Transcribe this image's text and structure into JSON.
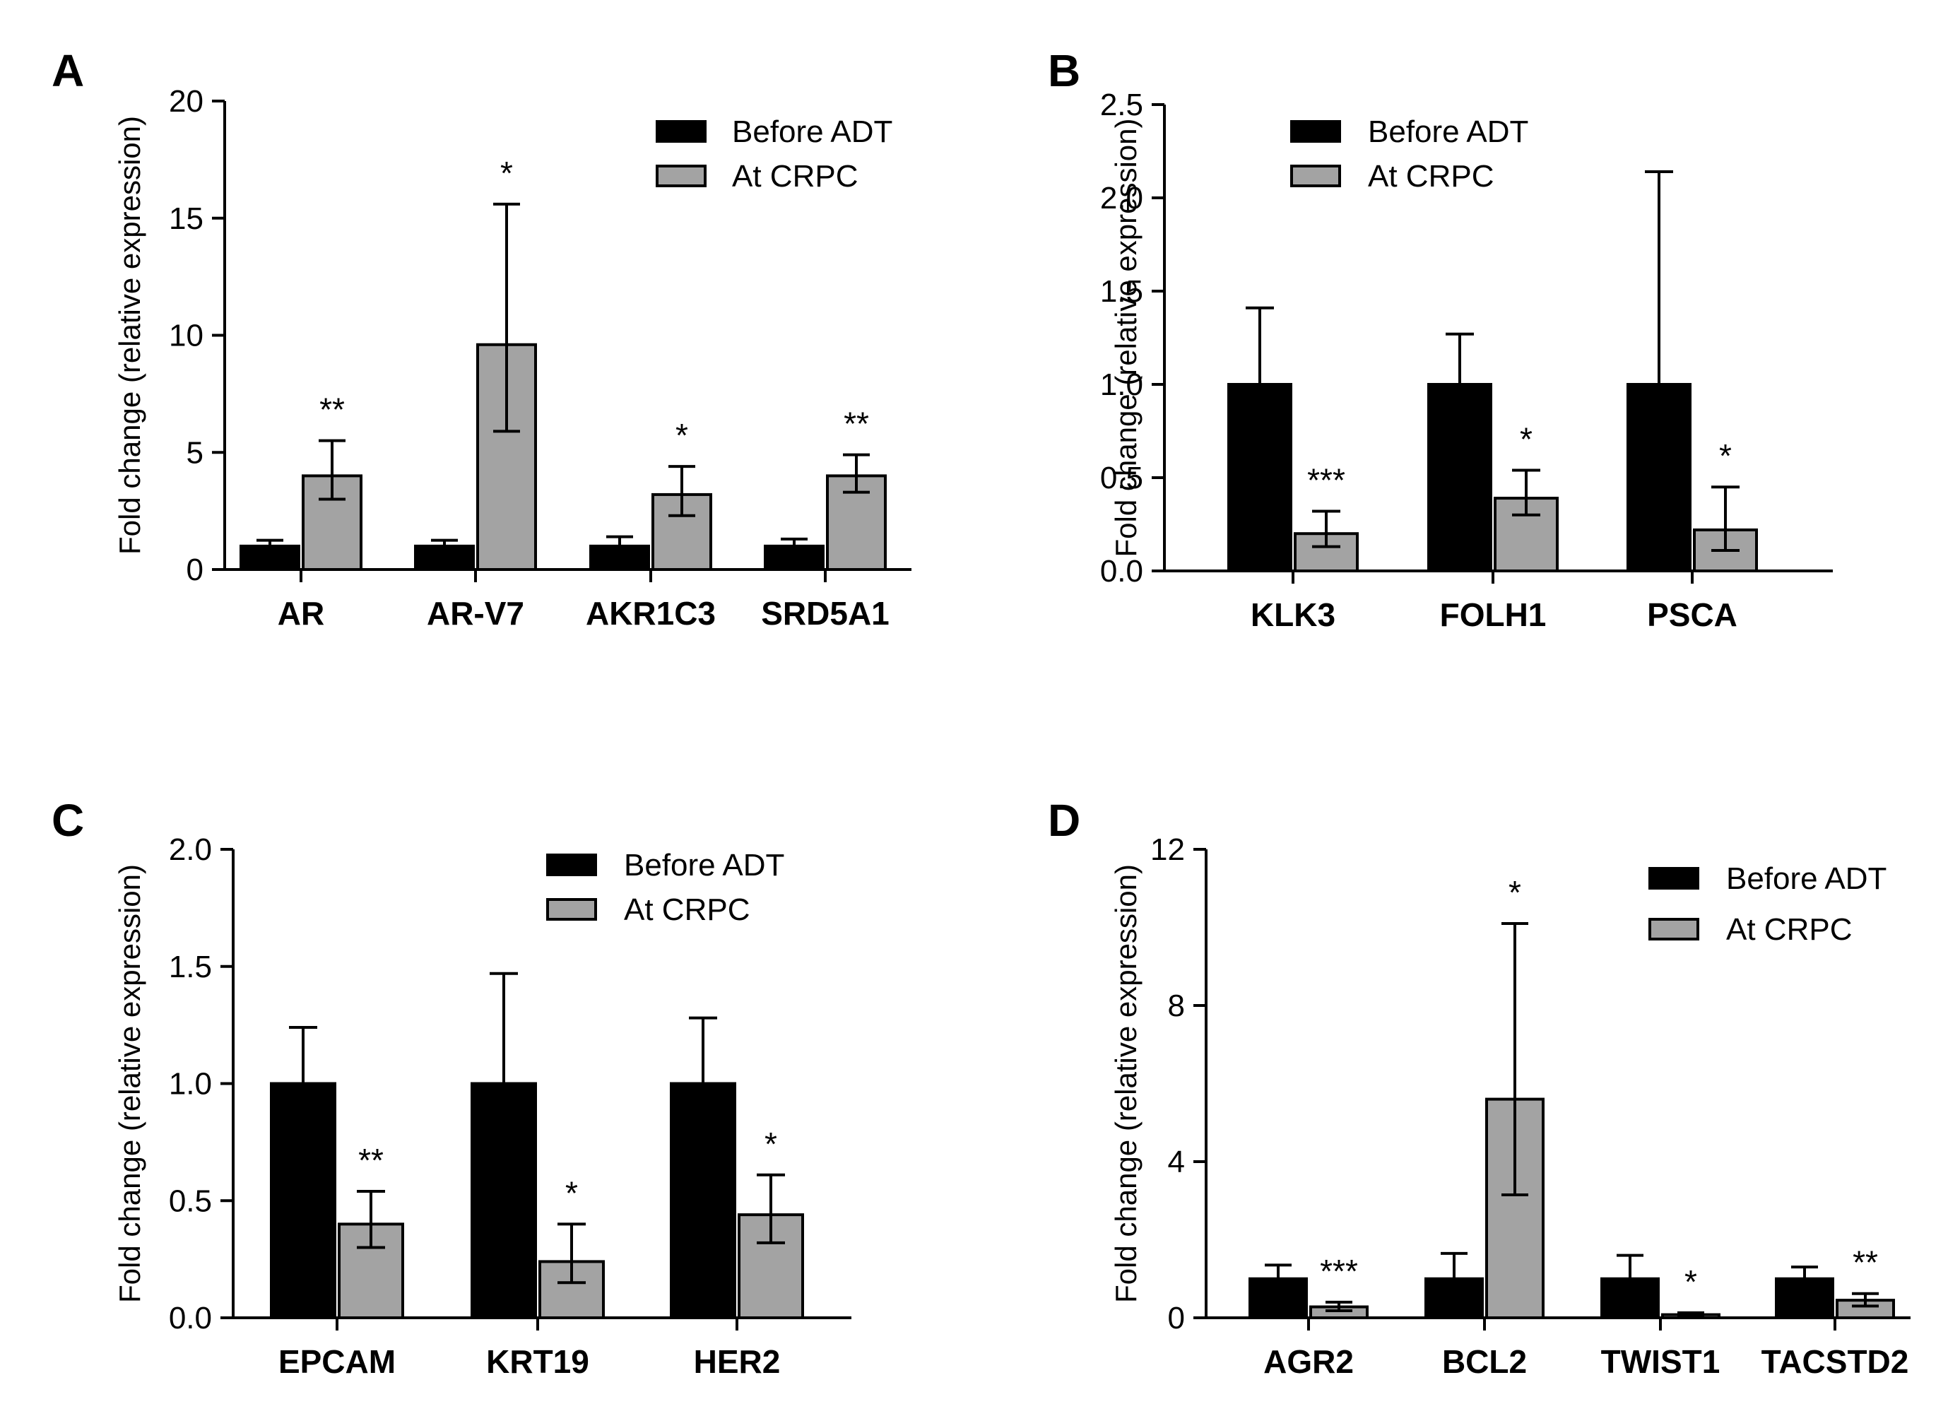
{
  "figure": {
    "legend_series": [
      "Before ADT",
      "At CRPC"
    ]
  },
  "colors": {
    "before": "#000000",
    "crpc": "#a3a3a3",
    "axis": "#000000"
  },
  "chart_data": [
    {
      "panel": "A",
      "type": "bar",
      "ylabel": "Fold change (relative expression)",
      "ylim": [
        0,
        20
      ],
      "yticks": [
        0,
        5,
        10,
        15,
        20
      ],
      "ytick_labels": [
        "0",
        "5",
        "10",
        "15",
        "20"
      ],
      "categories": [
        "AR",
        "AR-V7",
        "AKR1C3",
        "SRD5A1"
      ],
      "series": [
        {
          "name": "Before ADT",
          "values": [
            1.0,
            1.0,
            1.0,
            1.0
          ],
          "err_high": [
            1.25,
            1.25,
            1.4,
            1.3
          ]
        },
        {
          "name": "At CRPC",
          "values": [
            4.0,
            9.6,
            3.2,
            4.0
          ],
          "err_low": [
            3.0,
            5.9,
            2.3,
            3.3
          ],
          "err_high": [
            5.5,
            15.6,
            4.4,
            4.9
          ]
        }
      ],
      "significance": [
        "**",
        "*",
        "*",
        "**"
      ],
      "legend_position": "top-right"
    },
    {
      "panel": "B",
      "type": "bar",
      "ylabel": "Fold change (relative expression)",
      "ylim": [
        0,
        2.5
      ],
      "yticks": [
        0,
        0.5,
        1.0,
        1.5,
        2.0,
        2.5
      ],
      "ytick_labels": [
        "0.0",
        "0.5",
        "1.0",
        "1.5",
        "2.0",
        "2.5"
      ],
      "categories": [
        "KLK3",
        "FOLH1",
        "PSCA"
      ],
      "series": [
        {
          "name": "Before ADT",
          "values": [
            1.0,
            1.0,
            1.0
          ],
          "err_high": [
            1.41,
            1.27,
            2.14
          ]
        },
        {
          "name": "At CRPC",
          "values": [
            0.2,
            0.39,
            0.22
          ],
          "err_low": [
            0.13,
            0.3,
            0.11
          ],
          "err_high": [
            0.32,
            0.54,
            0.45
          ]
        }
      ],
      "significance": [
        "***",
        "*",
        "*"
      ],
      "legend_position": "top-left"
    },
    {
      "panel": "C",
      "type": "bar",
      "ylabel": "Fold change (relative expression)",
      "ylim": [
        0,
        2.0
      ],
      "yticks": [
        0,
        0.5,
        1.0,
        1.5,
        2.0
      ],
      "ytick_labels": [
        "0.0",
        "0.5",
        "1.0",
        "1.5",
        "2.0"
      ],
      "categories": [
        "EPCAM",
        "KRT19",
        "HER2"
      ],
      "series": [
        {
          "name": "Before ADT",
          "values": [
            1.0,
            1.0,
            1.0
          ],
          "err_high": [
            1.24,
            1.47,
            1.28
          ]
        },
        {
          "name": "At CRPC",
          "values": [
            0.4,
            0.24,
            0.44
          ],
          "err_low": [
            0.3,
            0.15,
            0.32
          ],
          "err_high": [
            0.54,
            0.4,
            0.61
          ]
        }
      ],
      "significance": [
        "**",
        "*",
        "*"
      ],
      "legend_position": "top-right"
    },
    {
      "panel": "D",
      "type": "bar",
      "ylabel": "Fold change (relative expression)",
      "ylim": [
        0,
        12
      ],
      "yticks": [
        0,
        4,
        8,
        12
      ],
      "ytick_labels": [
        "0",
        "4",
        "8",
        "12"
      ],
      "categories": [
        "AGR2",
        "BCL2",
        "TWIST1",
        "TACSTD2"
      ],
      "series": [
        {
          "name": "Before ADT",
          "values": [
            1.0,
            1.0,
            1.0,
            1.0
          ],
          "err_high": [
            1.35,
            1.65,
            1.6,
            1.3
          ]
        },
        {
          "name": "At CRPC",
          "values": [
            0.28,
            5.6,
            0.08,
            0.45
          ],
          "err_low": [
            0.18,
            3.15,
            0.04,
            0.3
          ],
          "err_high": [
            0.4,
            10.1,
            0.13,
            0.62
          ]
        }
      ],
      "significance": [
        "***",
        "*",
        "*",
        "**"
      ],
      "legend_position": "top-right"
    }
  ]
}
